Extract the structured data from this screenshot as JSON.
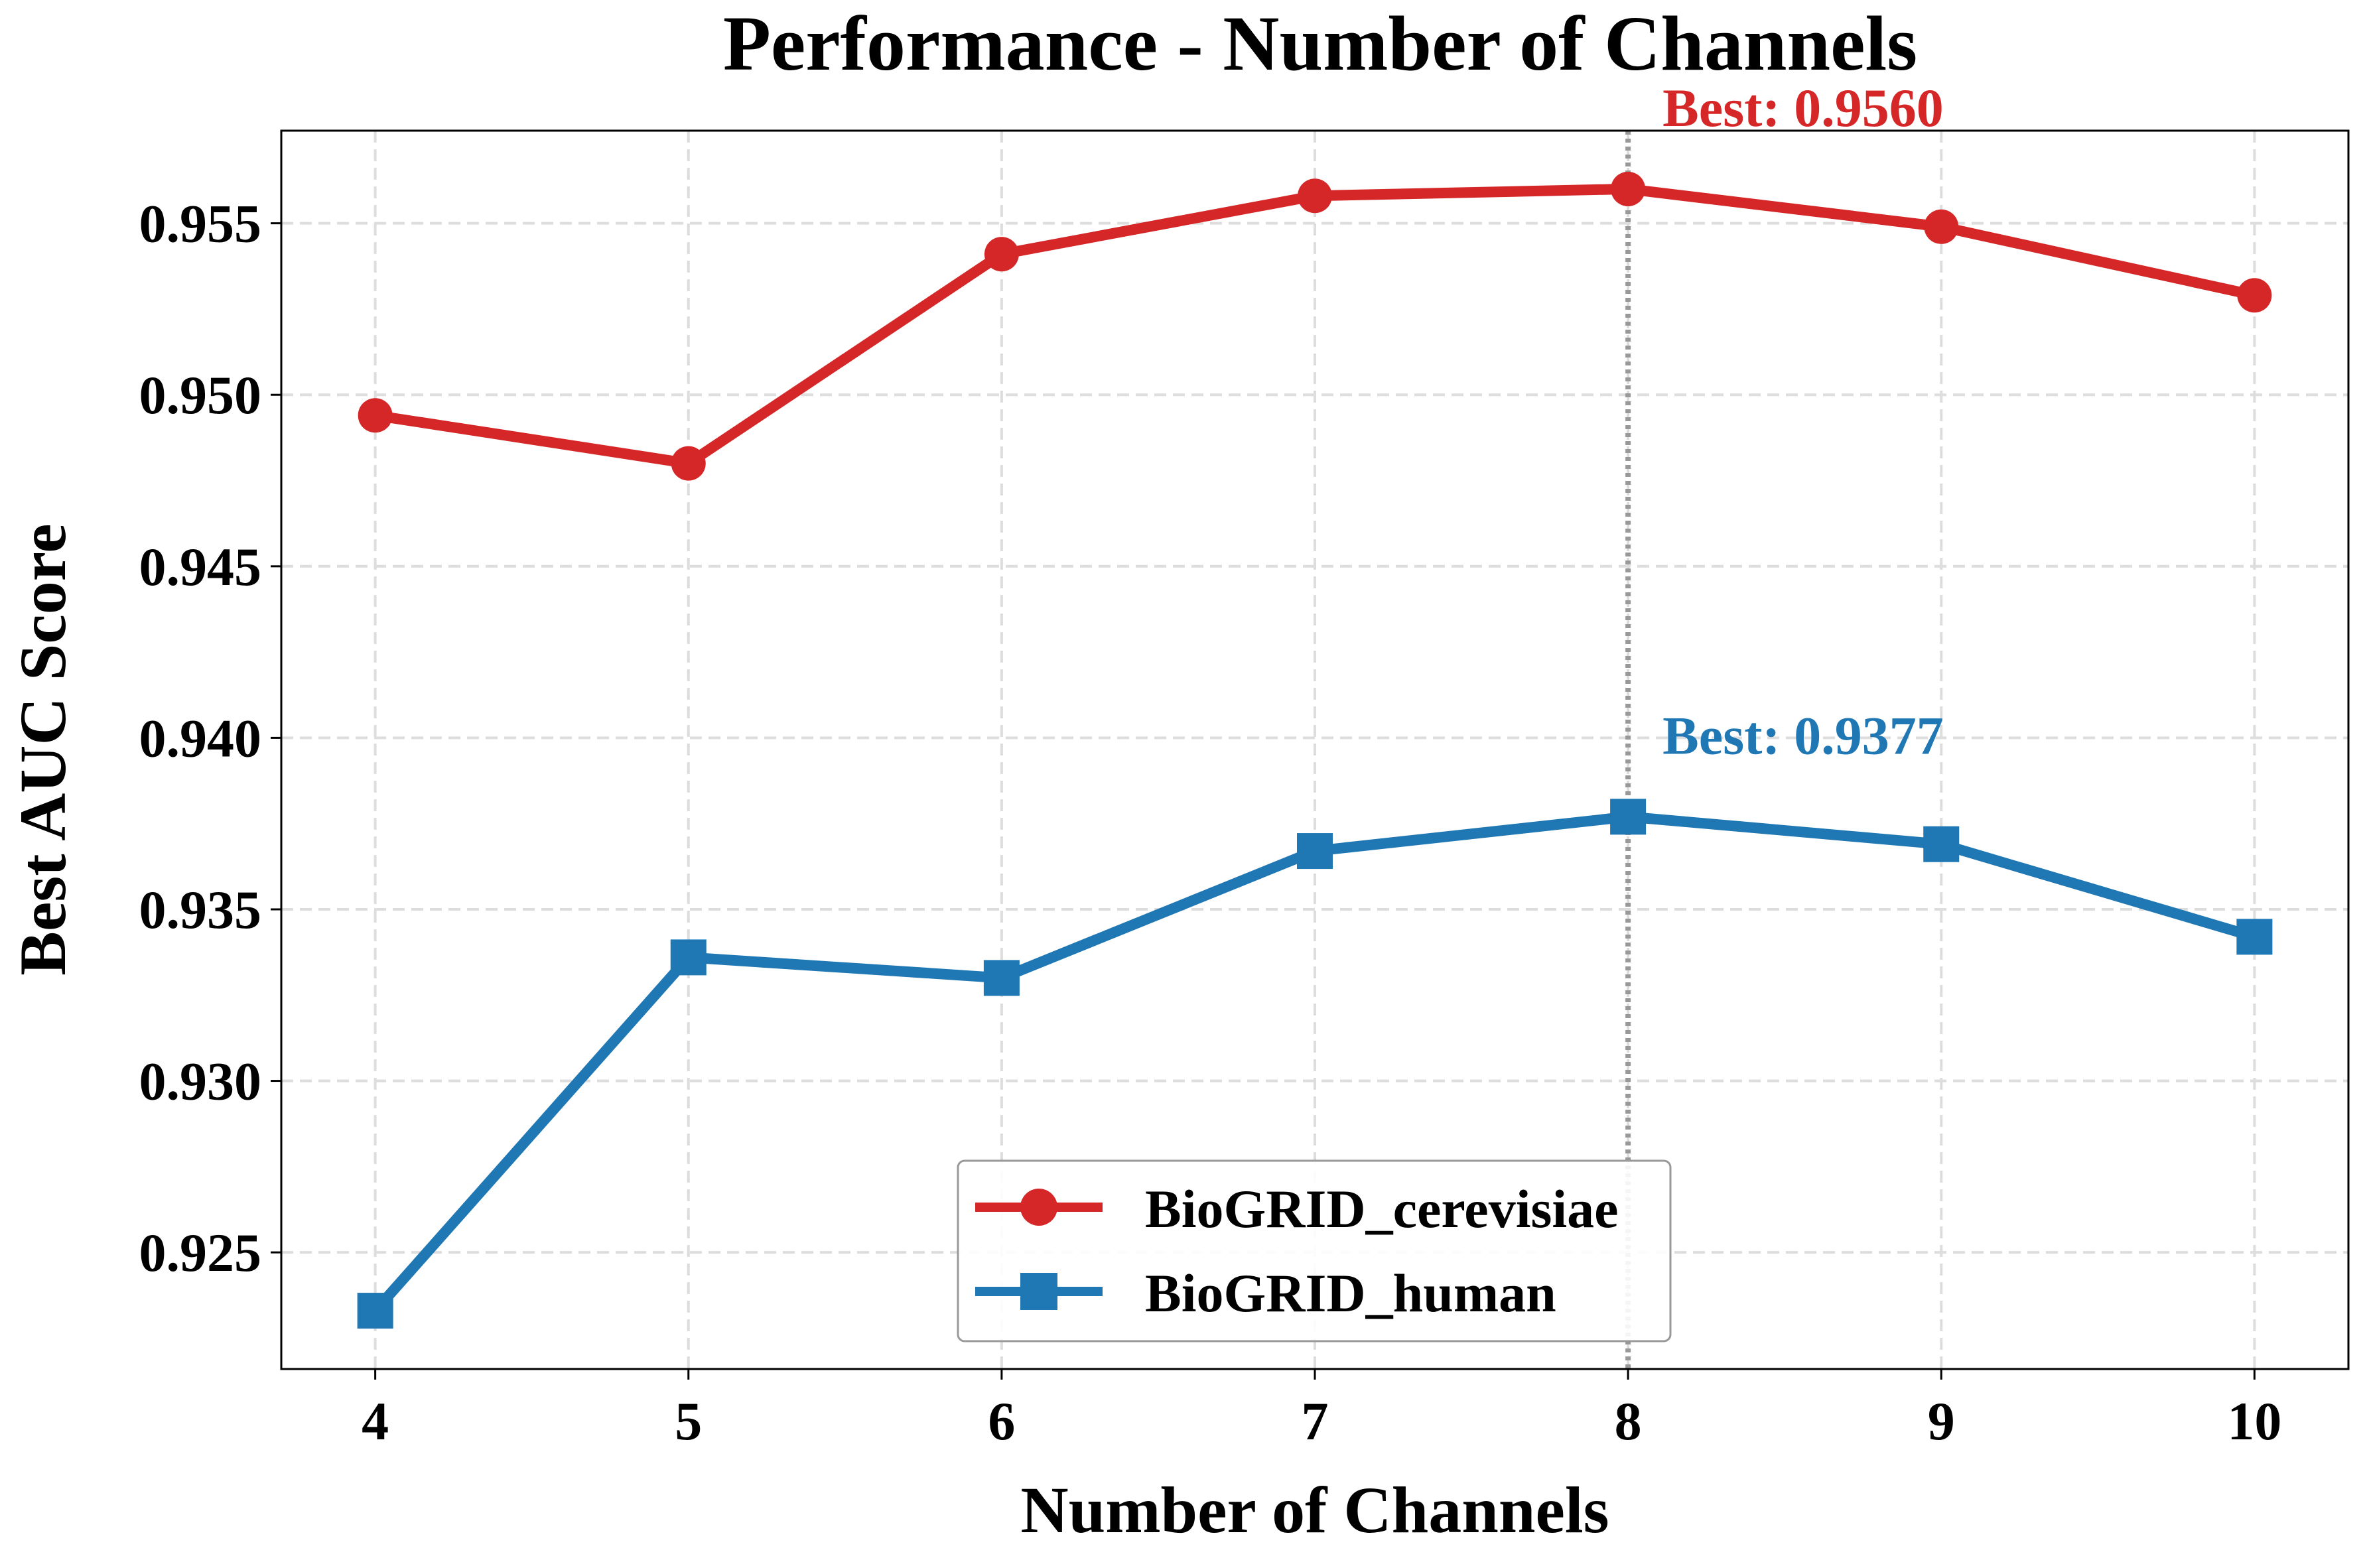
{
  "chart_data": {
    "type": "line",
    "title": "Performance - Number of Channels",
    "xlabel": "Number of Channels",
    "ylabel": "Best AUC Score",
    "x": [
      4,
      5,
      6,
      7,
      8,
      9,
      10
    ],
    "x_ticks": [
      "4",
      "5",
      "6",
      "7",
      "8",
      "9",
      "10"
    ],
    "y_ticks": [
      "0.925",
      "0.930",
      "0.935",
      "0.940",
      "0.945",
      "0.950",
      "0.955"
    ],
    "y_tick_values": [
      0.925,
      0.93,
      0.935,
      0.94,
      0.945,
      0.95,
      0.955
    ],
    "xlim": [
      3.7,
      10.3
    ],
    "ylim": [
      0.9216,
      0.9577
    ],
    "grid": true,
    "legend_position": "bottom-center",
    "series": [
      {
        "name": "BioGRID_cerevisiae",
        "color": "#d62728",
        "marker": "circle",
        "values": [
          0.9494,
          0.948,
          0.9541,
          0.9558,
          0.956,
          0.9549,
          0.9529
        ]
      },
      {
        "name": "BioGRID_human",
        "color": "#1f77b4",
        "marker": "square",
        "values": [
          0.9233,
          0.9336,
          0.933,
          0.9367,
          0.9377,
          0.9369,
          0.9342
        ]
      }
    ],
    "best_line_x": 8,
    "annotations": [
      {
        "text": "Best: 0.9560",
        "x": 8,
        "y": 0.956,
        "color": "#d62728"
      },
      {
        "text": "Best: 0.9377",
        "x": 8,
        "y": 0.9377,
        "color": "#1f77b4"
      }
    ]
  }
}
